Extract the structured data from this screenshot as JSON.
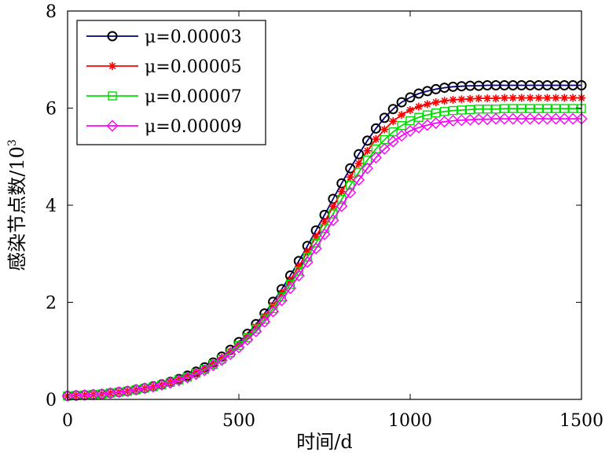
{
  "chart_data": {
    "type": "line",
    "xlabel": "时间/d",
    "ylabel": "感染节点数/10",
    "ylabel_exponent": "3",
    "xlim": [
      0,
      1500
    ],
    "ylim": [
      0,
      8
    ],
    "xticks": [
      0,
      500,
      1000,
      1500
    ],
    "yticks": [
      0,
      2,
      4,
      6,
      8
    ],
    "grid": false,
    "legend_position": "top-left",
    "series": [
      {
        "name": "μ=0.00003",
        "color": "#000080",
        "marker_color": "#000000",
        "marker": "circle",
        "x": [
          0,
          25,
          50,
          75,
          100,
          125,
          150,
          175,
          200,
          225,
          250,
          275,
          300,
          325,
          350,
          375,
          400,
          425,
          450,
          475,
          500,
          525,
          550,
          575,
          600,
          625,
          650,
          675,
          700,
          725,
          750,
          775,
          800,
          825,
          850,
          875,
          900,
          925,
          950,
          975,
          1000,
          1025,
          1050,
          1075,
          1100,
          1125,
          1150,
          1175,
          1200,
          1225,
          1250,
          1275,
          1300,
          1325,
          1350,
          1375,
          1400,
          1425,
          1450,
          1475,
          1500
        ],
        "values": [
          0.07,
          0.08,
          0.09,
          0.1,
          0.11,
          0.13,
          0.15,
          0.17,
          0.2,
          0.23,
          0.27,
          0.31,
          0.36,
          0.42,
          0.49,
          0.57,
          0.66,
          0.76,
          0.88,
          1.02,
          1.18,
          1.35,
          1.55,
          1.77,
          2.01,
          2.27,
          2.55,
          2.85,
          3.16,
          3.48,
          3.8,
          4.13,
          4.45,
          4.76,
          5.05,
          5.33,
          5.58,
          5.8,
          5.98,
          6.12,
          6.22,
          6.3,
          6.35,
          6.39,
          6.42,
          6.44,
          6.45,
          6.46,
          6.46,
          6.47,
          6.47,
          6.47,
          6.47,
          6.47,
          6.47,
          6.47,
          6.47,
          6.47,
          6.47,
          6.47,
          6.47
        ]
      },
      {
        "name": "μ=0.00005",
        "color": "#ff0000",
        "marker_color": "#ff0000",
        "marker": "asterisk",
        "x": [
          0,
          25,
          50,
          75,
          100,
          125,
          150,
          175,
          200,
          225,
          250,
          275,
          300,
          325,
          350,
          375,
          400,
          425,
          450,
          475,
          500,
          525,
          550,
          575,
          600,
          625,
          650,
          675,
          700,
          725,
          750,
          775,
          800,
          825,
          850,
          875,
          900,
          925,
          950,
          975,
          1000,
          1025,
          1050,
          1075,
          1100,
          1125,
          1150,
          1175,
          1200,
          1225,
          1250,
          1275,
          1300,
          1325,
          1350,
          1375,
          1400,
          1425,
          1450,
          1475,
          1500
        ],
        "values": [
          0.07,
          0.08,
          0.09,
          0.1,
          0.11,
          0.13,
          0.15,
          0.17,
          0.2,
          0.23,
          0.26,
          0.3,
          0.35,
          0.41,
          0.48,
          0.55,
          0.64,
          0.74,
          0.86,
          0.99,
          1.14,
          1.31,
          1.5,
          1.71,
          1.94,
          2.19,
          2.46,
          2.74,
          3.04,
          3.35,
          3.66,
          3.97,
          4.28,
          4.58,
          4.86,
          5.12,
          5.36,
          5.56,
          5.73,
          5.86,
          5.96,
          6.03,
          6.08,
          6.12,
          6.15,
          6.17,
          6.18,
          6.19,
          6.2,
          6.2,
          6.2,
          6.21,
          6.21,
          6.21,
          6.21,
          6.21,
          6.21,
          6.21,
          6.21,
          6.21,
          6.21
        ]
      },
      {
        "name": "μ=0.00007",
        "color": "#00dd00",
        "marker_color": "#00dd00",
        "marker": "square",
        "x": [
          0,
          25,
          50,
          75,
          100,
          125,
          150,
          175,
          200,
          225,
          250,
          275,
          300,
          325,
          350,
          375,
          400,
          425,
          450,
          475,
          500,
          525,
          550,
          575,
          600,
          625,
          650,
          675,
          700,
          725,
          750,
          775,
          800,
          825,
          850,
          875,
          900,
          925,
          950,
          975,
          1000,
          1025,
          1050,
          1075,
          1100,
          1125,
          1150,
          1175,
          1200,
          1225,
          1250,
          1275,
          1300,
          1325,
          1350,
          1375,
          1400,
          1425,
          1450,
          1475,
          1500
        ],
        "values": [
          0.07,
          0.08,
          0.09,
          0.1,
          0.11,
          0.13,
          0.15,
          0.17,
          0.2,
          0.23,
          0.26,
          0.3,
          0.35,
          0.4,
          0.46,
          0.54,
          0.62,
          0.72,
          0.83,
          0.96,
          1.11,
          1.27,
          1.45,
          1.65,
          1.87,
          2.11,
          2.37,
          2.64,
          2.93,
          3.22,
          3.52,
          3.82,
          4.12,
          4.41,
          4.68,
          4.93,
          5.16,
          5.35,
          5.51,
          5.64,
          5.74,
          5.81,
          5.86,
          5.9,
          5.93,
          5.95,
          5.96,
          5.97,
          5.98,
          5.98,
          5.98,
          5.99,
          5.99,
          5.99,
          5.99,
          5.99,
          5.99,
          5.99,
          5.99,
          5.99,
          5.99
        ]
      },
      {
        "name": "μ=0.00009",
        "color": "#ff00ff",
        "marker_color": "#ff00ff",
        "marker": "diamond",
        "x": [
          0,
          25,
          50,
          75,
          100,
          125,
          150,
          175,
          200,
          225,
          250,
          275,
          300,
          325,
          350,
          375,
          400,
          425,
          450,
          475,
          500,
          525,
          550,
          575,
          600,
          625,
          650,
          675,
          700,
          725,
          750,
          775,
          800,
          825,
          850,
          875,
          900,
          925,
          950,
          975,
          1000,
          1025,
          1050,
          1075,
          1100,
          1125,
          1150,
          1175,
          1200,
          1225,
          1250,
          1275,
          1300,
          1325,
          1350,
          1375,
          1400,
          1425,
          1450,
          1475,
          1500
        ],
        "values": [
          0.07,
          0.08,
          0.09,
          0.1,
          0.11,
          0.13,
          0.15,
          0.17,
          0.2,
          0.23,
          0.26,
          0.3,
          0.34,
          0.39,
          0.45,
          0.52,
          0.6,
          0.7,
          0.81,
          0.93,
          1.07,
          1.23,
          1.4,
          1.6,
          1.81,
          2.04,
          2.29,
          2.55,
          2.83,
          3.11,
          3.4,
          3.69,
          3.98,
          4.26,
          4.52,
          4.76,
          4.98,
          5.16,
          5.31,
          5.43,
          5.53,
          5.6,
          5.65,
          5.69,
          5.72,
          5.74,
          5.75,
          5.76,
          5.77,
          5.77,
          5.78,
          5.78,
          5.78,
          5.78,
          5.78,
          5.78,
          5.78,
          5.78,
          5.78,
          5.78,
          5.78
        ]
      }
    ]
  }
}
